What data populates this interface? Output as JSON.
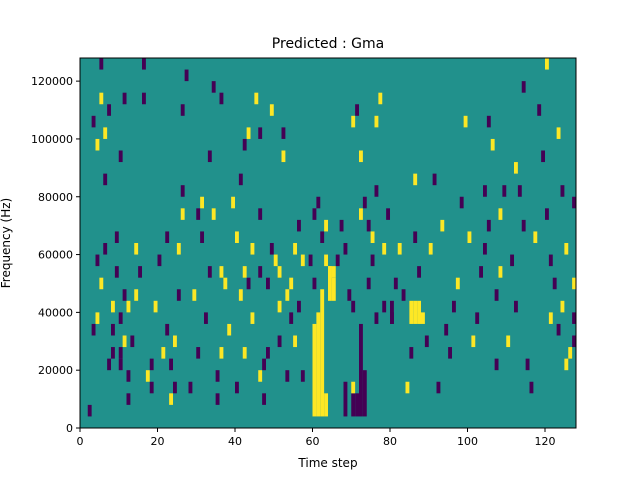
{
  "chart_data": {
    "type": "heatmap",
    "title": "Predicted : Gma",
    "xlabel": "Time step",
    "ylabel": "Frequency (Hz)",
    "xlim": [
      0,
      128
    ],
    "ylim": [
      0,
      128000
    ],
    "x_ticks": [
      0,
      20,
      40,
      60,
      80,
      100,
      120
    ],
    "x_tick_labels": [
      "0",
      "20",
      "40",
      "60",
      "80",
      "100",
      "120"
    ],
    "y_ticks": [
      0,
      20000,
      40000,
      60000,
      80000,
      100000,
      120000
    ],
    "y_tick_labels": [
      "0",
      "20000",
      "40000",
      "60000",
      "80000",
      "100000",
      "120000"
    ],
    "grid": false,
    "colormap": "viridis",
    "value_range": [
      -1,
      1
    ],
    "colors": {
      "background": "#21918c",
      "high": "#fde725",
      "low": "#440154"
    },
    "cell_width_timesteps": 1,
    "cell_height_hz": 4000,
    "note": "Values: background 0, high cells +1 (yellow), low cells -1 (purple). Each cell spans one time step and 4000 Hz starting at the listed frequency.",
    "cells": [
      [
        2,
        4000,
        -1
      ],
      [
        3,
        32000,
        -1
      ],
      [
        4,
        36000,
        1
      ],
      [
        4,
        56000,
        -1
      ],
      [
        5,
        48000,
        1
      ],
      [
        3,
        104000,
        -1
      ],
      [
        4,
        96000,
        1
      ],
      [
        5,
        112000,
        1
      ],
      [
        5,
        124000,
        -1
      ],
      [
        6,
        100000,
        1
      ],
      [
        6,
        60000,
        -1
      ],
      [
        6,
        84000,
        -1
      ],
      [
        7,
        108000,
        -1
      ],
      [
        7,
        20000,
        -1
      ],
      [
        8,
        24000,
        -1
      ],
      [
        8,
        32000,
        -1
      ],
      [
        8,
        40000,
        1
      ],
      [
        9,
        52000,
        -1
      ],
      [
        9,
        64000,
        -1
      ],
      [
        10,
        24000,
        -1
      ],
      [
        10,
        20000,
        -1
      ],
      [
        11,
        28000,
        1
      ],
      [
        10,
        36000,
        -1
      ],
      [
        11,
        44000,
        -1
      ],
      [
        10,
        92000,
        -1
      ],
      [
        11,
        112000,
        -1
      ],
      [
        12,
        8000,
        -1
      ],
      [
        12,
        16000,
        -1
      ],
      [
        12,
        40000,
        1
      ],
      [
        13,
        28000,
        -1
      ],
      [
        14,
        44000,
        1
      ],
      [
        14,
        60000,
        1
      ],
      [
        15,
        52000,
        -1
      ],
      [
        16,
        112000,
        -1
      ],
      [
        16,
        124000,
        -1
      ],
      [
        17,
        16000,
        1
      ],
      [
        18,
        20000,
        -1
      ],
      [
        18,
        12000,
        -1
      ],
      [
        19,
        40000,
        1
      ],
      [
        20,
        56000,
        -1
      ],
      [
        21,
        24000,
        1
      ],
      [
        22,
        32000,
        -1
      ],
      [
        22,
        64000,
        -1
      ],
      [
        23,
        8000,
        1
      ],
      [
        23,
        20000,
        -1
      ],
      [
        24,
        12000,
        -1
      ],
      [
        24,
        28000,
        1
      ],
      [
        25,
        44000,
        -1
      ],
      [
        25,
        60000,
        1
      ],
      [
        26,
        72000,
        1
      ],
      [
        26,
        80000,
        -1
      ],
      [
        26,
        108000,
        -1
      ],
      [
        27,
        120000,
        -1
      ],
      [
        28,
        12000,
        -1
      ],
      [
        29,
        44000,
        1
      ],
      [
        30,
        24000,
        -1
      ],
      [
        30,
        72000,
        -1
      ],
      [
        31,
        64000,
        -1
      ],
      [
        31,
        76000,
        1
      ],
      [
        32,
        36000,
        -1
      ],
      [
        33,
        52000,
        -1
      ],
      [
        33,
        92000,
        -1
      ],
      [
        34,
        72000,
        1
      ],
      [
        34,
        116000,
        -1
      ],
      [
        35,
        8000,
        -1
      ],
      [
        35,
        16000,
        -1
      ],
      [
        36,
        24000,
        1
      ],
      [
        36,
        52000,
        1
      ],
      [
        36,
        112000,
        -1
      ],
      [
        37,
        48000,
        1
      ],
      [
        38,
        32000,
        1
      ],
      [
        39,
        76000,
        1
      ],
      [
        40,
        12000,
        -1
      ],
      [
        40,
        64000,
        1
      ],
      [
        41,
        44000,
        1
      ],
      [
        41,
        84000,
        -1
      ],
      [
        42,
        24000,
        1
      ],
      [
        42,
        52000,
        1
      ],
      [
        42,
        96000,
        -1
      ],
      [
        43,
        48000,
        -1
      ],
      [
        43,
        100000,
        1
      ],
      [
        44,
        36000,
        1
      ],
      [
        44,
        60000,
        1
      ],
      [
        45,
        112000,
        1
      ],
      [
        46,
        52000,
        -1
      ],
      [
        46,
        16000,
        1
      ],
      [
        46,
        72000,
        -1
      ],
      [
        46,
        100000,
        -1
      ],
      [
        47,
        20000,
        -1
      ],
      [
        47,
        8000,
        -1
      ],
      [
        48,
        24000,
        -1
      ],
      [
        48,
        48000,
        -1
      ],
      [
        49,
        108000,
        1
      ],
      [
        49,
        60000,
        -1
      ],
      [
        50,
        56000,
        1
      ],
      [
        51,
        40000,
        1
      ],
      [
        51,
        28000,
        -1
      ],
      [
        51,
        52000,
        1
      ],
      [
        52,
        100000,
        -1
      ],
      [
        52,
        92000,
        1
      ],
      [
        53,
        16000,
        -1
      ],
      [
        53,
        44000,
        1
      ],
      [
        54,
        36000,
        -1
      ],
      [
        54,
        48000,
        1
      ],
      [
        55,
        28000,
        1
      ],
      [
        55,
        60000,
        1
      ],
      [
        56,
        68000,
        -1
      ],
      [
        56,
        40000,
        -1
      ],
      [
        57,
        16000,
        -1
      ],
      [
        57,
        56000,
        1
      ],
      [
        59,
        56000,
        -1
      ],
      [
        60,
        72000,
        -1
      ],
      [
        60,
        48000,
        -1
      ],
      [
        61,
        76000,
        -1
      ],
      [
        62,
        64000,
        -1
      ],
      [
        63,
        68000,
        1
      ],
      [
        63,
        56000,
        1
      ],
      [
        64,
        52000,
        1
      ],
      [
        65,
        52000,
        1
      ],
      [
        66,
        56000,
        -1
      ],
      [
        67,
        68000,
        -1
      ],
      [
        68,
        60000,
        -1
      ],
      [
        69,
        44000,
        -1
      ],
      [
        70,
        12000,
        1
      ],
      [
        70,
        40000,
        -1
      ],
      [
        70,
        104000,
        1
      ],
      [
        71,
        108000,
        -1
      ],
      [
        72,
        92000,
        1
      ],
      [
        72,
        72000,
        1
      ],
      [
        73,
        76000,
        -1
      ],
      [
        74,
        68000,
        -1
      ],
      [
        74,
        48000,
        -1
      ],
      [
        75,
        56000,
        -1
      ],
      [
        75,
        64000,
        1
      ],
      [
        76,
        36000,
        -1
      ],
      [
        76,
        80000,
        -1
      ],
      [
        76,
        104000,
        1
      ],
      [
        77,
        112000,
        1
      ],
      [
        78,
        40000,
        -1
      ],
      [
        78,
        60000,
        1
      ],
      [
        79,
        72000,
        -1
      ],
      [
        80,
        36000,
        -1
      ],
      [
        81,
        48000,
        -1
      ],
      [
        82,
        60000,
        1
      ],
      [
        83,
        44000,
        -1
      ],
      [
        84,
        12000,
        1
      ],
      [
        85,
        24000,
        -1
      ],
      [
        86,
        64000,
        -1
      ],
      [
        86,
        84000,
        1
      ],
      [
        87,
        52000,
        -1
      ],
      [
        88,
        36000,
        1
      ],
      [
        89,
        28000,
        -1
      ],
      [
        90,
        60000,
        1
      ],
      [
        91,
        84000,
        -1
      ],
      [
        92,
        12000,
        -1
      ],
      [
        93,
        68000,
        1
      ],
      [
        94,
        32000,
        -1
      ],
      [
        95,
        24000,
        -1
      ],
      [
        96,
        40000,
        -1
      ],
      [
        97,
        48000,
        1
      ],
      [
        98,
        76000,
        -1
      ],
      [
        99,
        104000,
        1
      ],
      [
        100,
        64000,
        1
      ],
      [
        101,
        28000,
        1
      ],
      [
        102,
        36000,
        -1
      ],
      [
        103,
        52000,
        -1
      ],
      [
        104,
        80000,
        -1
      ],
      [
        104,
        60000,
        -1
      ],
      [
        105,
        104000,
        -1
      ],
      [
        105,
        68000,
        -1
      ],
      [
        106,
        96000,
        1
      ],
      [
        107,
        20000,
        -1
      ],
      [
        107,
        44000,
        -1
      ],
      [
        108,
        52000,
        1
      ],
      [
        108,
        72000,
        1
      ],
      [
        109,
        80000,
        -1
      ],
      [
        110,
        28000,
        1
      ],
      [
        111,
        56000,
        -1
      ],
      [
        112,
        40000,
        -1
      ],
      [
        112,
        88000,
        1
      ],
      [
        113,
        80000,
        -1
      ],
      [
        114,
        68000,
        -1
      ],
      [
        114,
        116000,
        -1
      ],
      [
        115,
        20000,
        -1
      ],
      [
        116,
        12000,
        -1
      ],
      [
        117,
        64000,
        1
      ],
      [
        118,
        108000,
        -1
      ],
      [
        119,
        92000,
        -1
      ],
      [
        120,
        72000,
        -1
      ],
      [
        120,
        124000,
        1
      ],
      [
        121,
        36000,
        1
      ],
      [
        121,
        56000,
        -1
      ],
      [
        122,
        48000,
        -1
      ],
      [
        123,
        100000,
        1
      ],
      [
        123,
        32000,
        -1
      ],
      [
        124,
        40000,
        1
      ],
      [
        124,
        80000,
        -1
      ],
      [
        125,
        60000,
        1
      ],
      [
        125,
        20000,
        1
      ],
      [
        126,
        24000,
        1
      ],
      [
        127,
        36000,
        -1
      ],
      [
        127,
        28000,
        -1
      ],
      [
        127,
        48000,
        1
      ],
      [
        127,
        76000,
        -1
      ]
    ],
    "bands": [
      {
        "t": 60,
        "f_from": 4000,
        "f_to": 32000,
        "v": 1
      },
      {
        "t": 61,
        "f_from": 4000,
        "f_to": 36000,
        "v": 1
      },
      {
        "t": 62,
        "f_from": 4000,
        "f_to": 44000,
        "v": 1
      },
      {
        "t": 63,
        "f_from": 4000,
        "f_to": 8000,
        "v": 1
      },
      {
        "t": 64,
        "f_from": 44000,
        "f_to": 52000,
        "v": 1
      },
      {
        "t": 65,
        "f_from": 44000,
        "f_to": 48000,
        "v": 1
      },
      {
        "t": 68,
        "f_from": 4000,
        "f_to": 12000,
        "v": -1
      },
      {
        "t": 70,
        "f_from": 4000,
        "f_to": 8000,
        "v": -1
      },
      {
        "t": 71,
        "f_from": 4000,
        "f_to": 8000,
        "v": -1
      },
      {
        "t": 72,
        "f_from": 4000,
        "f_to": 32000,
        "v": -1
      },
      {
        "t": 73,
        "f_from": 4000,
        "f_to": 16000,
        "v": -1
      },
      {
        "t": 80,
        "f_from": 36000,
        "f_to": 40000,
        "v": -1
      },
      {
        "t": 85,
        "f_from": 36000,
        "f_to": 40000,
        "v": 1
      },
      {
        "t": 86,
        "f_from": 36000,
        "f_to": 40000,
        "v": 1
      },
      {
        "t": 87,
        "f_from": 36000,
        "f_to": 40000,
        "v": 1
      }
    ]
  }
}
